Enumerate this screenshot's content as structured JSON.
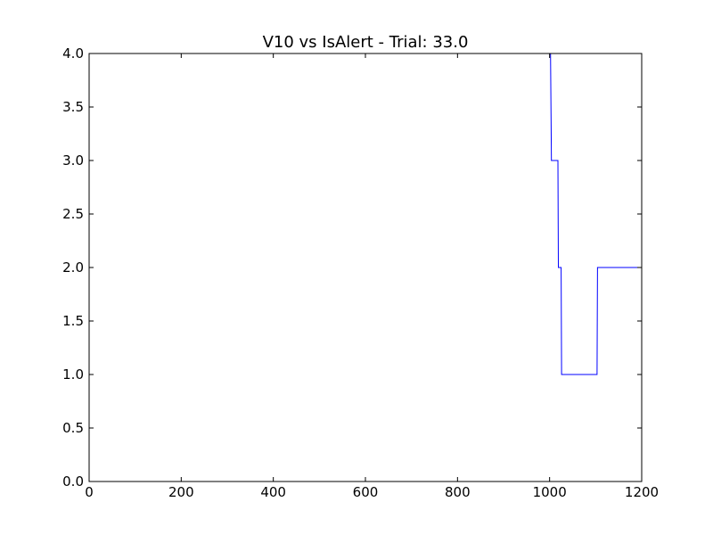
{
  "chart_data": {
    "type": "line",
    "title": "V10 vs IsAlert - Trial: 33.0",
    "xlabel": "",
    "ylabel": "",
    "xlim": [
      0,
      1200
    ],
    "ylim": [
      0,
      4
    ],
    "grid": false,
    "x_ticks": [
      0,
      200,
      400,
      600,
      800,
      1000,
      1200
    ],
    "y_ticks": [
      0.0,
      0.5,
      1.0,
      1.5,
      2.0,
      2.5,
      3.0,
      3.5,
      4.0
    ],
    "series": [
      {
        "color": "#0000ff",
        "points": [
          [
            1002,
            4
          ],
          [
            1004,
            3
          ],
          [
            1018,
            3
          ],
          [
            1019,
            2
          ],
          [
            1025,
            2
          ],
          [
            1026,
            1
          ],
          [
            1103,
            1
          ],
          [
            1104,
            2
          ],
          [
            1200,
            2
          ]
        ]
      },
      {
        "color": "#008000",
        "points": [
          [
            0,
            0
          ],
          [
            1200,
            0
          ]
        ]
      }
    ]
  }
}
